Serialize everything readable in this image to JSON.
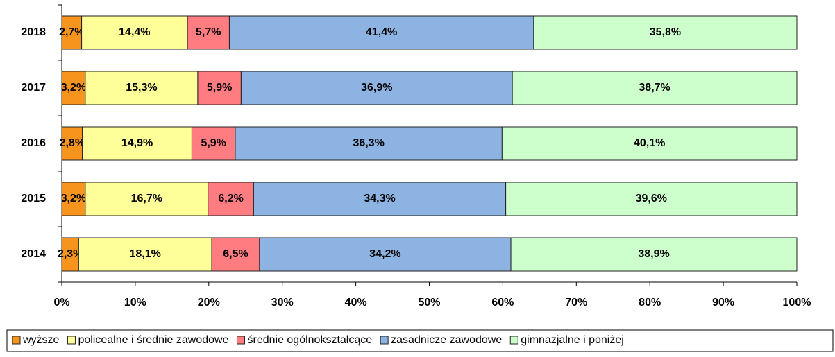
{
  "chart_data": {
    "type": "stacked-bar-horizontal",
    "categories": [
      "2018",
      "2017",
      "2016",
      "2015",
      "2014"
    ],
    "series": [
      {
        "name": "wyższe",
        "color": "#f7941d",
        "values": [
          2.7,
          3.2,
          2.8,
          3.2,
          2.3
        ],
        "value_labels": [
          "2,7%",
          "3,2%",
          "2,8%",
          "3,2%",
          "2,3%"
        ]
      },
      {
        "name": "policealne i średnie zawodowe",
        "color": "#ffff99",
        "values": [
          14.4,
          15.3,
          14.9,
          16.7,
          18.1
        ],
        "value_labels": [
          "14,4%",
          "15,3%",
          "14,9%",
          "16,7%",
          "18,1%"
        ]
      },
      {
        "name": "średnie ogólnokształcące",
        "color": "#ff7c80",
        "values": [
          5.7,
          5.9,
          5.9,
          6.2,
          6.5
        ],
        "value_labels": [
          "5,7%",
          "5,9%",
          "5,9%",
          "6,2%",
          "6,5%"
        ]
      },
      {
        "name": "zasadnicze zawodowe",
        "color": "#8db3e2",
        "values": [
          41.4,
          36.9,
          36.3,
          34.3,
          34.2
        ],
        "value_labels": [
          "41,4%",
          "36,9%",
          "36,3%",
          "34,3%",
          "34,2%"
        ]
      },
      {
        "name": "gimnazjalne i poniżej",
        "color": "#ccffcc",
        "values": [
          35.8,
          38.7,
          40.1,
          39.6,
          38.9
        ],
        "value_labels": [
          "35,8%",
          "38,7%",
          "40,1%",
          "39,6%",
          "38,9%"
        ]
      }
    ],
    "xlim": [
      0,
      100
    ],
    "xticks": [
      {
        "value": 0,
        "label": "0%"
      },
      {
        "value": 10,
        "label": "10%"
      },
      {
        "value": 20,
        "label": "20%"
      },
      {
        "value": 30,
        "label": "30%"
      },
      {
        "value": 40,
        "label": "40%"
      },
      {
        "value": 50,
        "label": "50%"
      },
      {
        "value": 60,
        "label": "60%"
      },
      {
        "value": 70,
        "label": "70%"
      },
      {
        "value": 80,
        "label": "80%"
      },
      {
        "value": 90,
        "label": "90%"
      },
      {
        "value": 100,
        "label": "100%"
      }
    ],
    "legend": "bottom"
  }
}
